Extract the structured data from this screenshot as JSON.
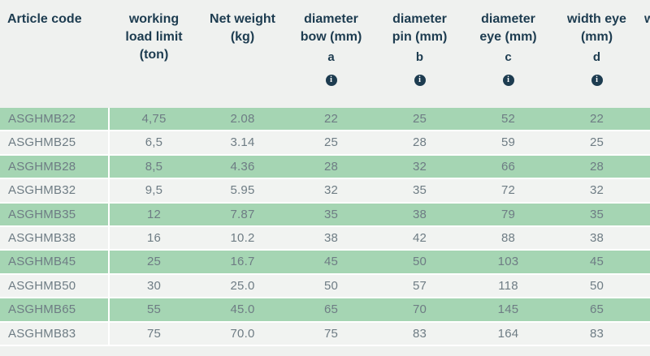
{
  "colors": {
    "page_bg": "#eff1ef",
    "green_row": "#a5d5b3",
    "light_row": "#f1f3f1",
    "separator": "#ffffff",
    "header_text": "#1d3c50",
    "data_text": "#6e7c84"
  },
  "table": {
    "clipped_column_label": "w",
    "columns": [
      {
        "key": "article",
        "label": "Article code",
        "letter": "",
        "info": false
      },
      {
        "key": "wll",
        "label": "working load limit (ton)",
        "letter": "",
        "info": false
      },
      {
        "key": "weight",
        "label": "Net weight (kg)",
        "letter": "",
        "info": false
      },
      {
        "key": "bow",
        "label": "diameter bow (mm)",
        "letter": "a",
        "info": true
      },
      {
        "key": "pin",
        "label": "diameter pin (mm)",
        "letter": "b",
        "info": true
      },
      {
        "key": "eye",
        "label": "diameter eye (mm)",
        "letter": "c",
        "info": true
      },
      {
        "key": "width_eye",
        "label": "width eye (mm)",
        "letter": "d",
        "info": true
      }
    ],
    "info_icon_glyph": "i",
    "rows": [
      {
        "article": "ASGHMB22",
        "wll": "4,75",
        "weight": "2.08",
        "bow": "22",
        "pin": "25",
        "eye": "52",
        "width_eye": "22"
      },
      {
        "article": "ASGHMB25",
        "wll": "6,5",
        "weight": "3.14",
        "bow": "25",
        "pin": "28",
        "eye": "59",
        "width_eye": "25"
      },
      {
        "article": "ASGHMB28",
        "wll": "8,5",
        "weight": "4.36",
        "bow": "28",
        "pin": "32",
        "eye": "66",
        "width_eye": "28"
      },
      {
        "article": "ASGHMB32",
        "wll": "9,5",
        "weight": "5.95",
        "bow": "32",
        "pin": "35",
        "eye": "72",
        "width_eye": "32"
      },
      {
        "article": "ASGHMB35",
        "wll": "12",
        "weight": "7.87",
        "bow": "35",
        "pin": "38",
        "eye": "79",
        "width_eye": "35"
      },
      {
        "article": "ASGHMB38",
        "wll": "16",
        "weight": "10.2",
        "bow": "38",
        "pin": "42",
        "eye": "88",
        "width_eye": "38"
      },
      {
        "article": "ASGHMB45",
        "wll": "25",
        "weight": "16.7",
        "bow": "45",
        "pin": "50",
        "eye": "103",
        "width_eye": "45"
      },
      {
        "article": "ASGHMB50",
        "wll": "30",
        "weight": "25.0",
        "bow": "50",
        "pin": "57",
        "eye": "118",
        "width_eye": "50"
      },
      {
        "article": "ASGHMB65",
        "wll": "55",
        "weight": "45.0",
        "bow": "65",
        "pin": "70",
        "eye": "145",
        "width_eye": "65"
      },
      {
        "article": "ASGHMB83",
        "wll": "75",
        "weight": "70.0",
        "bow": "75",
        "pin": "83",
        "eye": "164",
        "width_eye": "83"
      }
    ]
  }
}
